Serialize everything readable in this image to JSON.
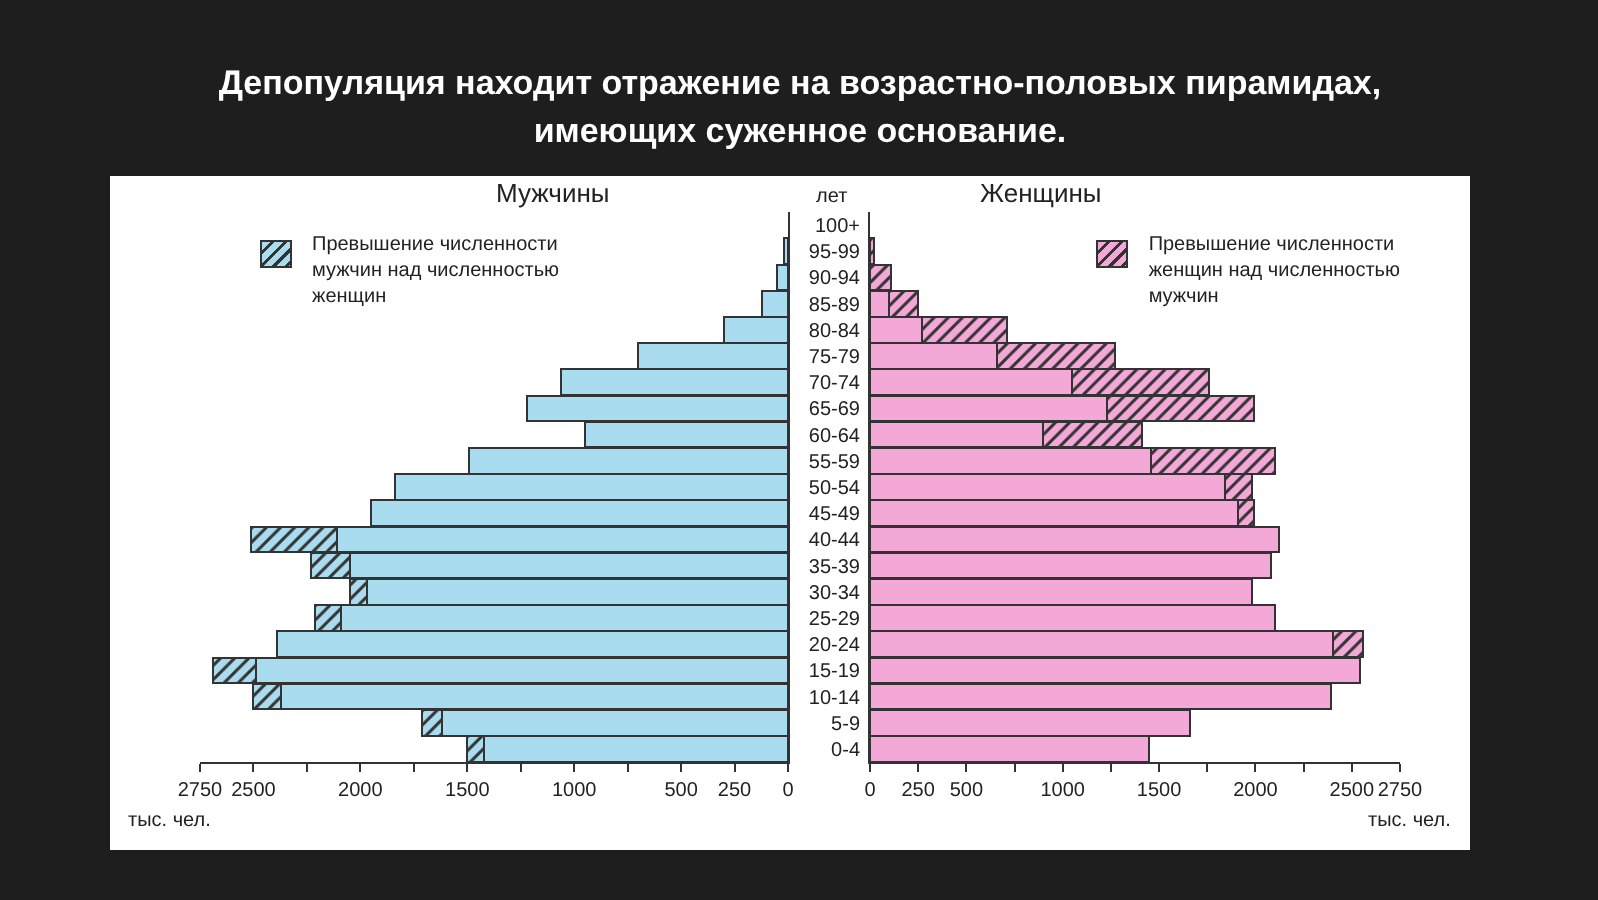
{
  "chart_data": [
    {
      "type": "bar",
      "orientation": "horizontal",
      "stacked": true,
      "title": "Депопуляция находит отражение на возрастно-половых пирамидах, имеющих суженное основание.",
      "subtitle": "Мужчины",
      "xlabel": "тыс. чел.",
      "categories": [
        null,
        null,
        null,
        null,
        null,
        null,
        null,
        null,
        null,
        null,
        null,
        null,
        null,
        null,
        null,
        null,
        null,
        null,
        null,
        null,
        null
      ],
      "series": [
        {
          "color": "#aadcf0",
          "values": [
            null,
            20,
            50,
            120,
            300,
            700,
            1060,
            1220,
            950,
            1490,
            1840,
            1950,
            2110,
            2050,
            1970,
            2090,
            2390,
            2490,
            2370,
            1620,
            1420
          ]
        },
        {
          "name": "Превышение численности мужчин над численностью женщин",
          "color": "#333333",
          "values": [
            null,
            null,
            null,
            null,
            null,
            null,
            null,
            null,
            null,
            null,
            null,
            null,
            400,
            180,
            80,
            120,
            null,
            200,
            130,
            90,
            80
          ]
        }
      ],
      "xlim": [
        2750,
        0
      ],
      "xticks": [
        2750,
        2500,
        {
          "value": 2250,
          "label": null
        },
        2000,
        {
          "value": 1750,
          "label": null
        },
        1500,
        {
          "value": 1250,
          "label": null
        },
        1000,
        {
          "value": 750,
          "label": null
        },
        500,
        250,
        0
      ],
      "legend": "top left",
      "tick_labels": "x",
      "grid": false
    },
    {
      "type": "bar",
      "orientation": "horizontal",
      "stacked": true,
      "subtitle": "Женщины",
      "xlabel": "тыс. чел.",
      "ylabel": "лет",
      "categories": [
        "100+",
        "95-99",
        "90-94",
        "85-89",
        "80-84",
        "75-79",
        "70-74",
        "65-69",
        "60-64",
        "55-59",
        "50-54",
        "45-49",
        "40-44",
        "35-39",
        "30-34",
        "25-29",
        "20-24",
        "15-19",
        "10-14",
        "5-9",
        "0-4"
      ],
      "series": [
        {
          "color": "#f4a8d8",
          "values": [
            null,
            null,
            null,
            100,
            270,
            660,
            1050,
            1230,
            900,
            1460,
            1840,
            1910,
            2120,
            2080,
            1980,
            2100,
            2400,
            2540,
            2390,
            1660,
            1450
          ]
        },
        {
          "name": "Превышение численности женщин над численностью мужчин",
          "color": "#333333",
          "values": [
            null,
            20,
            110,
            150,
            440,
            610,
            710,
            760,
            510,
            640,
            140,
            80,
            null,
            null,
            null,
            null,
            160,
            null,
            null,
            null,
            null
          ]
        }
      ],
      "xlim": [
        0,
        2750
      ],
      "xticks": [
        0,
        250,
        500,
        {
          "value": 750,
          "label": null
        },
        1000,
        {
          "value": 1250,
          "label": null
        },
        1500,
        {
          "value": 1750,
          "label": null
        },
        2000,
        {
          "value": 2250,
          "label": null
        },
        2500,
        2750
      ],
      "legend": "top right",
      "grid": false
    }
  ]
}
